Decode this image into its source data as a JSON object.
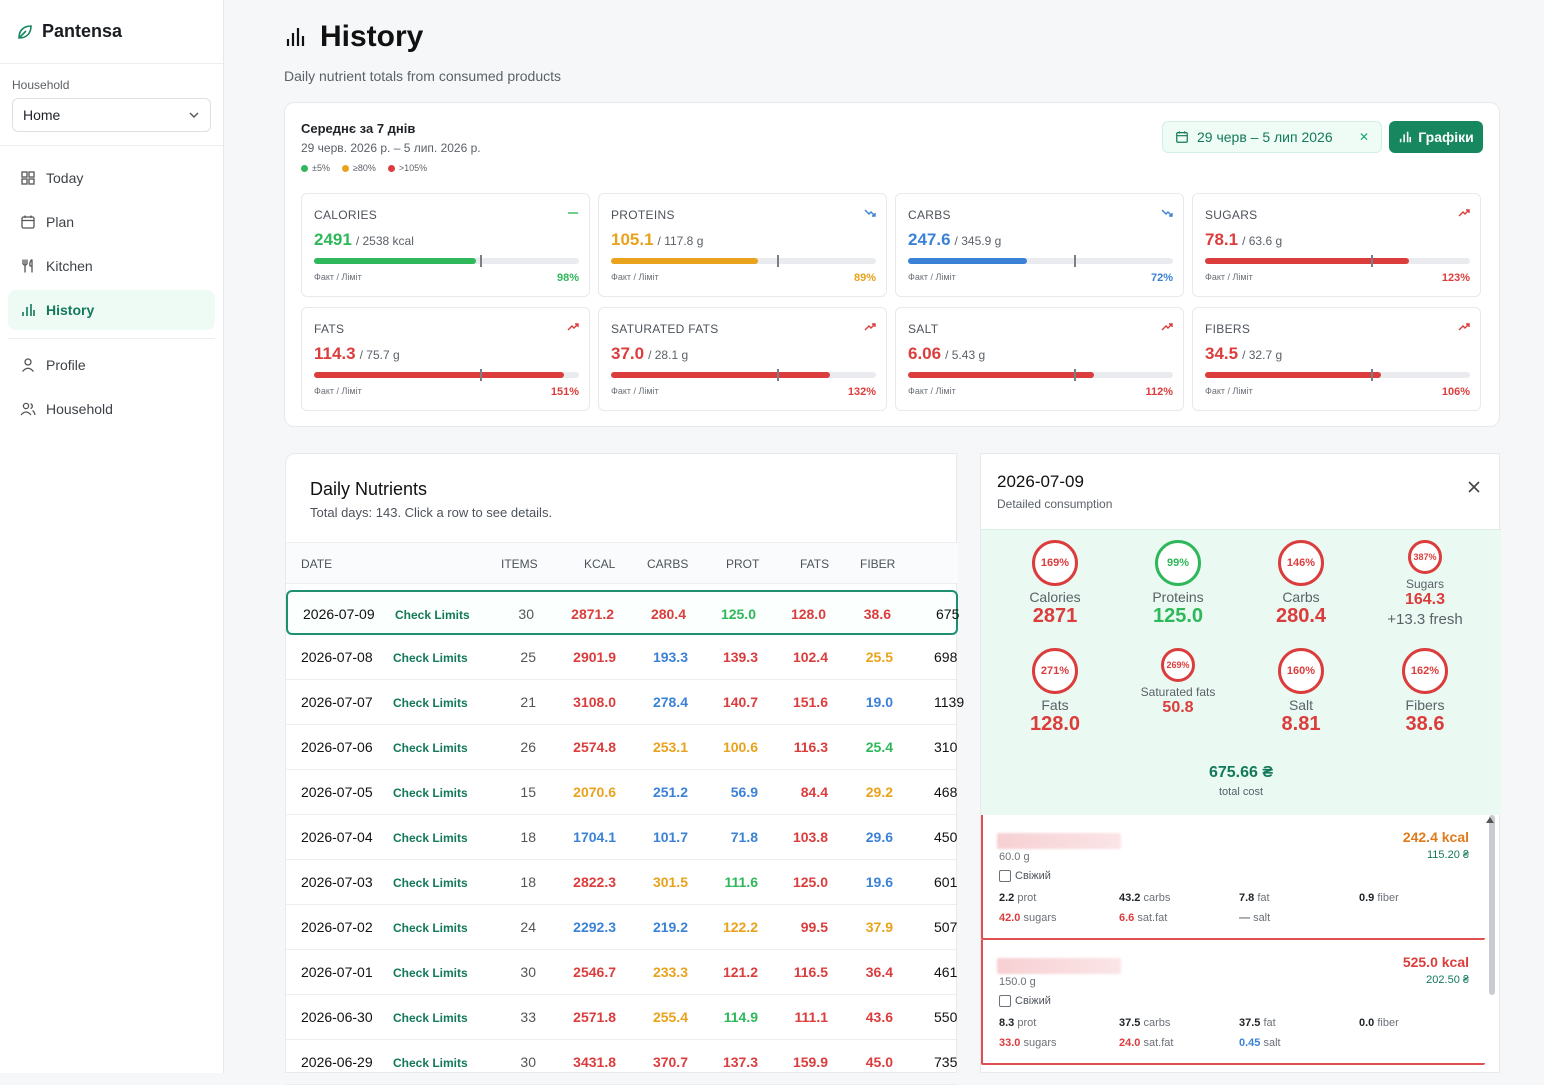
{
  "app": {
    "name": "Pantensa"
  },
  "sidebar": {
    "household_label": "Household",
    "household_value": "Home",
    "nav": [
      {
        "label": "Today"
      },
      {
        "label": "Plan"
      },
      {
        "label": "Kitchen"
      },
      {
        "label": "History"
      }
    ],
    "nav2": [
      {
        "label": "Profile"
      },
      {
        "label": "Household"
      }
    ]
  },
  "page": {
    "title": "History",
    "subtitle": "Daily nutrient totals from consumed products"
  },
  "summary": {
    "title": "Середнє за 7 днів",
    "range": "29 черв. 2026 р. – 5 лип. 2026 р.",
    "legend": [
      "±5%",
      "≥80%",
      ">105%"
    ],
    "date_filter": "29 черв – 5 лип 2026",
    "charts_button": "Графіки",
    "fact_limit": "Факт / Ліміт",
    "cards": [
      {
        "name": "CALORIES",
        "value": "2491",
        "limit": "/ 2538 kcal",
        "pct": "98%",
        "ratio": 0.98,
        "color": "#2fb85b",
        "trend": "flat"
      },
      {
        "name": "PROTEINS",
        "value": "105.1",
        "limit": "/ 117.8 g",
        "pct": "89%",
        "ratio": 0.89,
        "color": "#e9a21c",
        "trend": "down"
      },
      {
        "name": "CARBS",
        "value": "247.6",
        "limit": "/ 345.9 g",
        "pct": "72%",
        "ratio": 0.72,
        "color": "#3b82d6",
        "trend": "down"
      },
      {
        "name": "SUGARS",
        "value": "78.1",
        "limit": "/ 63.6 g",
        "pct": "123%",
        "ratio": 1.23,
        "color": "#db3d3d",
        "trend": "up"
      },
      {
        "name": "FATS",
        "value": "114.3",
        "limit": "/ 75.7 g",
        "pct": "151%",
        "ratio": 1.51,
        "color": "#db3d3d",
        "trend": "up"
      },
      {
        "name": "SATURATED FATS",
        "value": "37.0",
        "limit": "/ 28.1 g",
        "pct": "132%",
        "ratio": 1.32,
        "color": "#db3d3d",
        "trend": "up"
      },
      {
        "name": "SALT",
        "value": "6.06",
        "limit": "/ 5.43 g",
        "pct": "112%",
        "ratio": 1.12,
        "color": "#db3d3d",
        "trend": "up"
      },
      {
        "name": "FIBERS",
        "value": "34.5",
        "limit": "/ 32.7 g",
        "pct": "106%",
        "ratio": 1.06,
        "color": "#db3d3d",
        "trend": "up"
      }
    ]
  },
  "table": {
    "title": "Daily Nutrients",
    "subtitle": "Total days: 143. Click a row to see details.",
    "columns": [
      "DATE",
      "ITEMS",
      "KCAL",
      "CARBS",
      "PROT",
      "FATS",
      "FIBER"
    ],
    "check_label": "Check Limits",
    "rows": [
      {
        "date": "2026-07-09",
        "items": "30",
        "kcal": "2871.2",
        "kc": "#db3d3d",
        "carbs": "280.4",
        "cc": "#db3d3d",
        "prot": "125.0",
        "pc": "#2fb85b",
        "fats": "128.0",
        "fc": "#db3d3d",
        "fiber": "38.6",
        "fic": "#db3d3d",
        "cost": "675"
      },
      {
        "date": "2026-07-08",
        "items": "25",
        "kcal": "2901.9",
        "kc": "#db3d3d",
        "carbs": "193.3",
        "cc": "#3b82d6",
        "prot": "139.3",
        "pc": "#db3d3d",
        "fats": "102.4",
        "fc": "#db3d3d",
        "fiber": "25.5",
        "fic": "#e9a21c",
        "cost": "698"
      },
      {
        "date": "2026-07-07",
        "items": "21",
        "kcal": "3108.0",
        "kc": "#db3d3d",
        "carbs": "278.4",
        "cc": "#3b82d6",
        "prot": "140.7",
        "pc": "#db3d3d",
        "fats": "151.6",
        "fc": "#db3d3d",
        "fiber": "19.0",
        "fic": "#3b82d6",
        "cost": "1139"
      },
      {
        "date": "2026-07-06",
        "items": "26",
        "kcal": "2574.8",
        "kc": "#db3d3d",
        "carbs": "253.1",
        "cc": "#e9a21c",
        "prot": "100.6",
        "pc": "#e9a21c",
        "fats": "116.3",
        "fc": "#db3d3d",
        "fiber": "25.4",
        "fic": "#2fb85b",
        "cost": "310"
      },
      {
        "date": "2026-07-05",
        "items": "15",
        "kcal": "2070.6",
        "kc": "#e9a21c",
        "carbs": "251.2",
        "cc": "#3b82d6",
        "prot": "56.9",
        "pc": "#3b82d6",
        "fats": "84.4",
        "fc": "#db3d3d",
        "fiber": "29.2",
        "fic": "#e9a21c",
        "cost": "468"
      },
      {
        "date": "2026-07-04",
        "items": "18",
        "kcal": "1704.1",
        "kc": "#3b82d6",
        "carbs": "101.7",
        "cc": "#3b82d6",
        "prot": "71.8",
        "pc": "#3b82d6",
        "fats": "103.8",
        "fc": "#db3d3d",
        "fiber": "29.6",
        "fic": "#3b82d6",
        "cost": "450"
      },
      {
        "date": "2026-07-03",
        "items": "18",
        "kcal": "2822.3",
        "kc": "#db3d3d",
        "carbs": "301.5",
        "cc": "#e9a21c",
        "prot": "111.6",
        "pc": "#2fb85b",
        "fats": "125.0",
        "fc": "#db3d3d",
        "fiber": "19.6",
        "fic": "#3b82d6",
        "cost": "601"
      },
      {
        "date": "2026-07-02",
        "items": "24",
        "kcal": "2292.3",
        "kc": "#3b82d6",
        "carbs": "219.2",
        "cc": "#3b82d6",
        "prot": "122.2",
        "pc": "#e9a21c",
        "fats": "99.5",
        "fc": "#db3d3d",
        "fiber": "37.9",
        "fic": "#e9a21c",
        "cost": "507"
      },
      {
        "date": "2026-07-01",
        "items": "30",
        "kcal": "2546.7",
        "kc": "#db3d3d",
        "carbs": "233.3",
        "cc": "#e9a21c",
        "prot": "121.2",
        "pc": "#db3d3d",
        "fats": "116.5",
        "fc": "#db3d3d",
        "fiber": "36.4",
        "fic": "#db3d3d",
        "cost": "461"
      },
      {
        "date": "2026-06-30",
        "items": "33",
        "kcal": "2571.8",
        "kc": "#db3d3d",
        "carbs": "255.4",
        "cc": "#e9a21c",
        "prot": "114.9",
        "pc": "#2fb85b",
        "fats": "111.1",
        "fc": "#db3d3d",
        "fiber": "43.6",
        "fic": "#db3d3d",
        "cost": "550"
      },
      {
        "date": "2026-06-29",
        "items": "30",
        "kcal": "3431.8",
        "kc": "#db3d3d",
        "carbs": "370.7",
        "cc": "#db3d3d",
        "prot": "137.3",
        "pc": "#db3d3d",
        "fats": "159.9",
        "fc": "#db3d3d",
        "fiber": "45.0",
        "fic": "#db3d3d",
        "cost": "735"
      }
    ]
  },
  "detail": {
    "date": "2026-07-09",
    "subtitle": "Detailed consumption",
    "rings": [
      {
        "pct": "169%",
        "name": "Calories",
        "value": "2871",
        "color": "#db3d3d"
      },
      {
        "pct": "99%",
        "name": "Proteins",
        "value": "125.0",
        "color": "#2fb85b"
      },
      {
        "pct": "146%",
        "name": "Carbs",
        "value": "280.4",
        "color": "#db3d3d"
      },
      {
        "pct": "387%",
        "name": "Sugars",
        "value": "164.3",
        "extra": "+13.3 fresh",
        "color": "#db3d3d"
      },
      {
        "pct": "271%",
        "name": "Fats",
        "value": "128.0",
        "color": "#db3d3d"
      },
      {
        "pct": "269%",
        "name": "Saturated fats",
        "value": "50.8",
        "color": "#db3d3d"
      },
      {
        "pct": "160%",
        "name": "Salt",
        "value": "8.81",
        "color": "#db3d3d"
      },
      {
        "pct": "162%",
        "name": "Fibers",
        "value": "38.6",
        "color": "#db3d3d"
      }
    ],
    "cost_value": "675.66 ₴",
    "cost_label": "total cost",
    "fresh_label": "Свіжий",
    "items": [
      {
        "weight": "60.0 g",
        "kcal": "242.4 kcal",
        "kcal_color": "#e07b1d",
        "price": "115.20 ₴",
        "prot": "2.2",
        "carbs": "43.2",
        "fat": "7.8",
        "fiber": "0.9",
        "sugars": "42.0",
        "satfat": "6.6",
        "salt": "—",
        "salt_color": "#6b7178",
        "sugars_color": "#db3d3d",
        "satfat_color": "#db3d3d"
      },
      {
        "weight": "150.0 g",
        "kcal": "525.0 kcal",
        "kcal_color": "#db3d3d",
        "price": "202.50 ₴",
        "prot": "8.3",
        "carbs": "37.5",
        "fat": "37.5",
        "fiber": "0.0",
        "sugars": "33.0",
        "satfat": "24.0",
        "salt": "0.45",
        "salt_color": "#3b82d6",
        "sugars_color": "#db3d3d",
        "satfat_color": "#db3d3d"
      }
    ],
    "units": {
      "prot": "prot",
      "carbs": "carbs",
      "fat": "fat",
      "fiber": "fiber",
      "sugars": "sugars",
      "satfat": "sat.fat",
      "salt": "salt"
    }
  }
}
